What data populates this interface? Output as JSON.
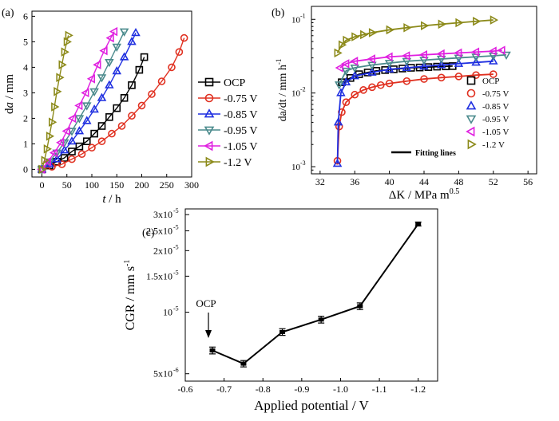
{
  "chart_data": [
    {
      "panel": "(a)",
      "type": "scatter",
      "xlabel_italic": "t",
      "xlabel_unit": " / h",
      "ylabel_italic": "a",
      "ylabel_prefix": "d",
      "ylabel_unit": " / mm",
      "xlim": [
        -20,
        300
      ],
      "ylim": [
        -0.3,
        6.2
      ],
      "xticks": [
        0,
        50,
        100,
        150,
        200,
        250,
        300
      ],
      "yticks": [
        0,
        1,
        2,
        3,
        4,
        5,
        6
      ],
      "legend_position": "right",
      "series": [
        {
          "name": "OCP",
          "color": "#000000",
          "marker": "square",
          "x": [
            0,
            15,
            30,
            45,
            60,
            75,
            90,
            105,
            120,
            135,
            150,
            165,
            180,
            195,
            205
          ],
          "y": [
            0,
            0.15,
            0.3,
            0.45,
            0.7,
            0.9,
            1.1,
            1.4,
            1.7,
            2.05,
            2.4,
            2.8,
            3.3,
            3.9,
            4.4
          ]
        },
        {
          "name": "-0.75 V",
          "color": "#e03020",
          "marker": "circle",
          "x": [
            0,
            20,
            40,
            60,
            80,
            100,
            120,
            140,
            160,
            180,
            200,
            220,
            240,
            260,
            275,
            285
          ],
          "y": [
            0,
            0.1,
            0.2,
            0.4,
            0.6,
            0.85,
            1.1,
            1.4,
            1.7,
            2.1,
            2.5,
            2.95,
            3.45,
            4.0,
            4.6,
            5.15
          ]
        },
        {
          "name": "-0.85 V",
          "color": "#1f2fe0",
          "marker": "triangle-up",
          "x": [
            0,
            15,
            30,
            45,
            60,
            75,
            90,
            105,
            120,
            135,
            150,
            165,
            180,
            188
          ],
          "y": [
            0,
            0.2,
            0.4,
            0.75,
            1.1,
            1.5,
            1.9,
            2.35,
            2.8,
            3.3,
            3.85,
            4.4,
            5.0,
            5.35
          ]
        },
        {
          "name": "-0.95 V",
          "color": "#4a8a8c",
          "marker": "triangle-down",
          "x": [
            0,
            15,
            30,
            45,
            60,
            75,
            90,
            105,
            120,
            135,
            150,
            165
          ],
          "y": [
            0,
            0.3,
            0.65,
            1.05,
            1.5,
            2.0,
            2.5,
            3.05,
            3.6,
            4.2,
            4.8,
            5.4
          ]
        },
        {
          "name": "-1.05 V",
          "color": "#e020e0",
          "marker": "triangle-left",
          "x": [
            0,
            12,
            25,
            38,
            50,
            62,
            75,
            88,
            100,
            112,
            125,
            138,
            145
          ],
          "y": [
            0,
            0.3,
            0.65,
            1.05,
            1.5,
            2.0,
            2.5,
            3.0,
            3.55,
            4.1,
            4.65,
            5.15,
            5.4
          ]
        },
        {
          "name": "-1.2 V",
          "color": "#8c8a1a",
          "marker": "triangle-right",
          "x": [
            0,
            5,
            10,
            15,
            20,
            25,
            30,
            35,
            40,
            45,
            50,
            53
          ],
          "y": [
            0,
            0.35,
            0.8,
            1.3,
            1.85,
            2.45,
            3.05,
            3.6,
            4.1,
            4.6,
            5.0,
            5.25
          ]
        }
      ]
    },
    {
      "panel": "(b)",
      "type": "scatter",
      "xlabel_prefix": "ΔK",
      "xlabel_unit": " / MPa m",
      "xlabel_sup": "0.5",
      "ylabel": "da/dt / mm h",
      "ylabel_sup": "-1",
      "xlim": [
        31,
        57
      ],
      "yscale": "log",
      "ylim": [
        0.0008,
        0.15
      ],
      "xticks": [
        32,
        36,
        40,
        44,
        48,
        52,
        56
      ],
      "yticks_text": [
        "10",
        "10",
        "10"
      ],
      "yticks_exp": [
        "-3",
        "-2",
        "-1"
      ],
      "ytick_values": [
        0.001,
        0.01,
        0.1
      ],
      "fit_label": "Fitting lines",
      "legend_position": "right",
      "series": [
        {
          "name": "OCP",
          "color": "#000000",
          "marker": "square",
          "x": [
            34.5,
            35.5,
            36.5,
            37.5,
            38.5,
            39.5,
            40.5,
            41.5,
            42.5,
            43.5,
            44.5,
            45.5,
            46.5,
            47.3
          ],
          "y": [
            0.014,
            0.016,
            0.018,
            0.019,
            0.02,
            0.0205,
            0.021,
            0.0215,
            0.022,
            0.0222,
            0.0225,
            0.0228,
            0.023,
            0.0232
          ]
        },
        {
          "name": "-0.75 V",
          "color": "#e03020",
          "marker": "circle",
          "x": [
            34.0,
            34.2,
            34.5,
            35,
            36,
            37,
            38,
            39,
            40,
            42,
            44,
            46,
            48,
            50,
            52
          ],
          "y": [
            0.0012,
            0.0035,
            0.0055,
            0.0075,
            0.0095,
            0.011,
            0.012,
            0.0128,
            0.0135,
            0.0145,
            0.0155,
            0.0162,
            0.0168,
            0.0175,
            0.018
          ]
        },
        {
          "name": "-0.85 V",
          "color": "#1f2fe0",
          "marker": "triangle-up",
          "x": [
            34.0,
            34.1,
            34.4,
            35,
            36,
            38,
            40,
            42,
            44,
            46,
            48,
            50,
            52
          ],
          "y": [
            0.0011,
            0.004,
            0.01,
            0.014,
            0.017,
            0.019,
            0.021,
            0.022,
            0.023,
            0.024,
            0.025,
            0.026,
            0.027
          ]
        },
        {
          "name": "-0.95 V",
          "color": "#4a8a8c",
          "marker": "triangle-down",
          "x": [
            34.2,
            35,
            36,
            38,
            40,
            42,
            44,
            46,
            48,
            50,
            52,
            53.5
          ],
          "y": [
            0.013,
            0.02,
            0.022,
            0.024,
            0.0255,
            0.027,
            0.028,
            0.029,
            0.03,
            0.031,
            0.032,
            0.033
          ]
        },
        {
          "name": "-1.05 V",
          "color": "#e020e0",
          "marker": "triangle-left",
          "x": [
            34.3,
            35,
            36,
            38,
            40,
            42,
            44,
            46,
            48,
            50,
            52,
            53
          ],
          "y": [
            0.022,
            0.025,
            0.027,
            0.029,
            0.031,
            0.032,
            0.033,
            0.034,
            0.035,
            0.036,
            0.037,
            0.038
          ]
        },
        {
          "name": "-1.2 V",
          "color": "#8c8a1a",
          "marker": "triangle-right",
          "x": [
            34.0,
            34.5,
            35,
            36,
            37,
            38,
            40,
            42,
            44,
            46,
            48,
            50,
            52
          ],
          "y": [
            0.035,
            0.045,
            0.052,
            0.058,
            0.062,
            0.066,
            0.072,
            0.077,
            0.082,
            0.086,
            0.09,
            0.094,
            0.098
          ]
        }
      ]
    },
    {
      "panel": "(c)",
      "type": "line",
      "xlabel": "Applied potential / V",
      "ylabel": "CGR / mm s",
      "ylabel_sup": "-1",
      "yscale": "log",
      "xlim": [
        -0.6,
        -1.25
      ],
      "ylim": [
        4.6e-06,
        3.2e-05
      ],
      "xticks": [
        "-0.6",
        "-0.7",
        "-0.8",
        "-0.9",
        "-1.0",
        "-1.1",
        "-1.2"
      ],
      "xtick_values": [
        -0.6,
        -0.7,
        -0.8,
        -0.9,
        -1.0,
        -1.1,
        -1.2
      ],
      "yticks": [
        {
          "mantissa": "5x10",
          "exp": "-6",
          "value": 5e-06
        },
        {
          "mantissa": "10",
          "exp": "-5",
          "value": 1e-05
        },
        {
          "mantissa": "1.5x10",
          "exp": "-5",
          "value": 1.5e-05
        },
        {
          "mantissa": "2x10",
          "exp": "-5",
          "value": 2e-05
        },
        {
          "mantissa": "2.5x10",
          "exp": "-5",
          "value": 2.5e-05
        },
        {
          "mantissa": "3x10",
          "exp": "-5",
          "value": 3e-05
        }
      ],
      "annotation": "OCP",
      "x": [
        -0.67,
        -0.75,
        -0.85,
        -0.95,
        -1.05,
        -1.2
      ],
      "y": [
        6.5e-06,
        5.6e-06,
        8e-06,
        9.2e-06,
        1.07e-05,
        2.7e-05
      ],
      "err": [
        2.5e-07,
        2e-07,
        3e-07,
        3.5e-07,
        4e-07,
        6e-07
      ]
    }
  ]
}
